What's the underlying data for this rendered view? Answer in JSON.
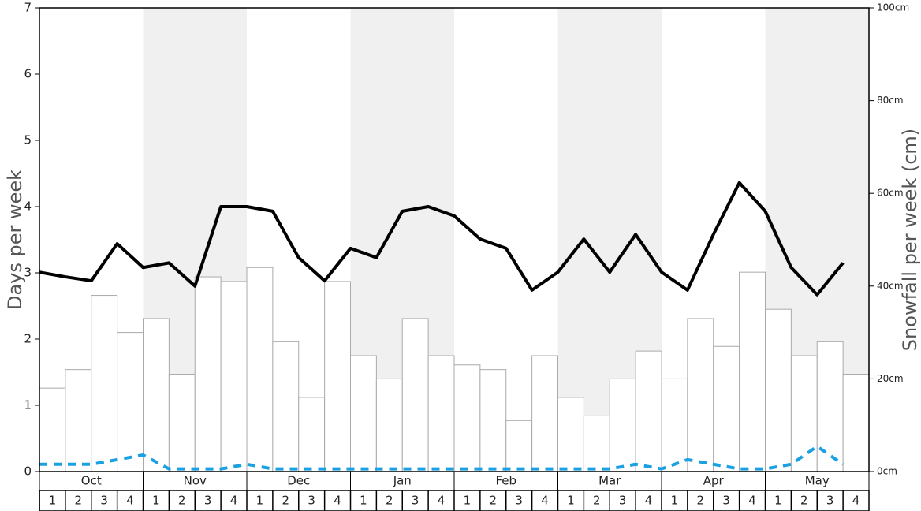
{
  "chart_data": {
    "type": "bar",
    "ylabel": "Days per week",
    "y2label": "Snowfall per week (cm)",
    "months": [
      "Oct",
      "Nov",
      "Dec",
      "Jan",
      "Feb",
      "Mar",
      "Apr",
      "May"
    ],
    "categories": [
      "1",
      "2",
      "3",
      "4",
      "1",
      "2",
      "3",
      "4",
      "1",
      "2",
      "3",
      "4",
      "1",
      "2",
      "3",
      "4",
      "1",
      "2",
      "3",
      "4",
      "1",
      "2",
      "3",
      "4",
      "1",
      "2",
      "3",
      "4",
      "1",
      "2",
      "3",
      "4"
    ],
    "ylim": [
      0,
      7
    ],
    "yticks": [
      0,
      1,
      2,
      3,
      4,
      5,
      6,
      7
    ],
    "y2lim": [
      0,
      100
    ],
    "y2ticks": [
      {
        "value": 0,
        "label": "0cm"
      },
      {
        "value": 20,
        "label": "20cm"
      },
      {
        "value": 40,
        "label": "40cm"
      },
      {
        "value": 60,
        "label": "60cm"
      },
      {
        "value": 80,
        "label": "80cm"
      },
      {
        "value": 100,
        "label": "100cm"
      }
    ],
    "series": [
      {
        "type": "bar",
        "axis": "y2",
        "color": "#ffffff",
        "values": [
          18,
          22,
          38,
          30,
          33,
          21,
          42,
          41,
          44,
          28,
          16,
          41,
          25,
          20,
          33,
          25,
          23,
          22,
          11,
          25,
          16,
          12,
          20,
          26,
          20,
          33,
          27,
          43,
          35,
          25,
          28,
          21
        ]
      },
      {
        "type": "line",
        "axis": "y",
        "color": "#000000",
        "values": [
          3.01,
          2.94,
          2.88,
          3.44,
          3.08,
          3.15,
          2.8,
          4.0,
          4.0,
          3.93,
          3.23,
          2.88,
          3.37,
          3.23,
          3.93,
          4.0,
          3.86,
          3.51,
          3.37,
          2.74,
          3.01,
          3.51,
          3.01,
          3.58,
          3.01,
          2.74,
          3.58,
          4.36,
          3.93,
          3.08,
          2.67,
          3.15
        ]
      },
      {
        "type": "dashed",
        "axis": "y",
        "color": "#1ba1e2",
        "values": [
          0.11,
          0.11,
          0.11,
          0.18,
          0.25,
          0.04,
          0.04,
          0.04,
          0.11,
          0.04,
          0.04,
          0.04,
          0.04,
          0.04,
          0.04,
          0.04,
          0.04,
          0.04,
          0.04,
          0.04,
          0.04,
          0.04,
          0.04,
          0.11,
          0.04,
          0.18,
          0.11,
          0.04,
          0.04,
          0.11,
          0.38,
          0.11
        ]
      }
    ]
  }
}
